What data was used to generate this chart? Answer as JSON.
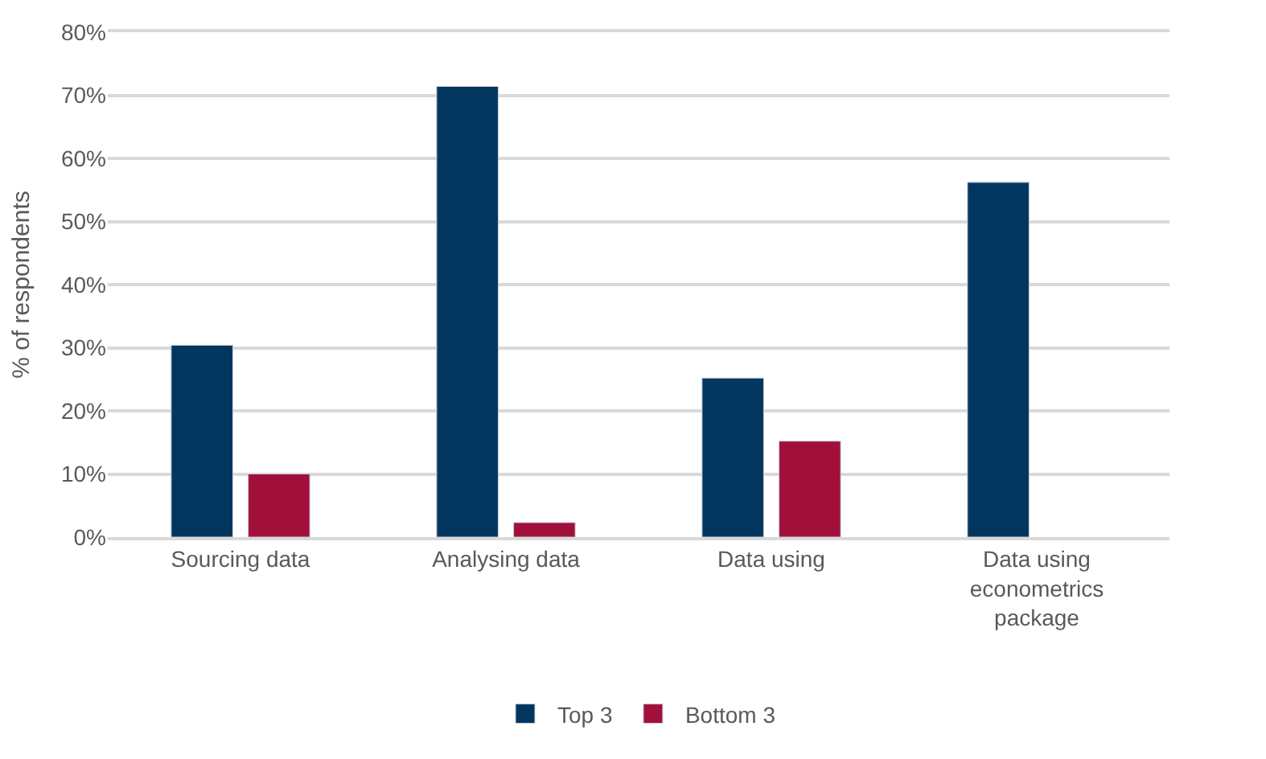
{
  "chart_data": {
    "type": "bar",
    "ylabel": "% of respondents",
    "categories": [
      "Sourcing data",
      "Analysing data",
      "Data using",
      "Data using\neconometrics\npackage"
    ],
    "series": [
      {
        "name": "Top 3",
        "color": "#03365e",
        "values": [
          30.4,
          71.4,
          25.2,
          56.2
        ]
      },
      {
        "name": "Bottom 3",
        "color": "#a1103b",
        "values": [
          10,
          2.3,
          15.2,
          null
        ]
      }
    ],
    "ylim": [
      0,
      80
    ],
    "yticks": [
      {
        "value": 0,
        "label": "0%"
      },
      {
        "value": 10,
        "label": "10%"
      },
      {
        "value": 20,
        "label": "20%"
      },
      {
        "value": 30,
        "label": "30%"
      },
      {
        "value": 40,
        "label": "40%"
      },
      {
        "value": 50,
        "label": "50%"
      },
      {
        "value": 60,
        "label": "60%"
      },
      {
        "value": 70,
        "label": "70%"
      },
      {
        "value": 80,
        "label": "80%"
      }
    ],
    "grid": "y",
    "legend": "bottom"
  }
}
